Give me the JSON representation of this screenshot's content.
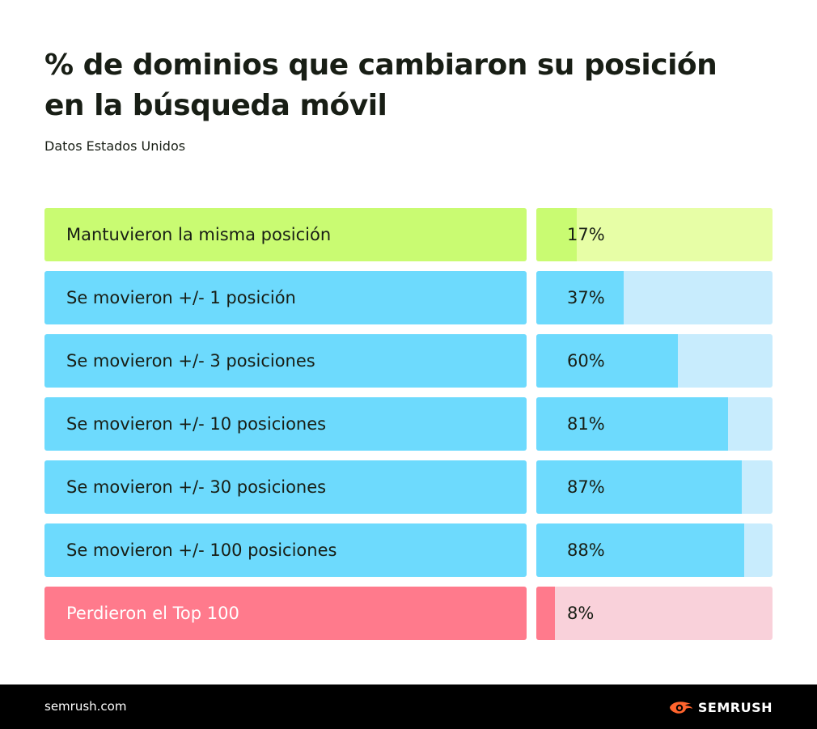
{
  "title": "% de dominios que cambiaron su posición en la búsqueda móvil",
  "subtitle": "Datos Estados Unidos",
  "chart_data": {
    "type": "bar",
    "orientation": "horizontal",
    "title": "% de dominios que cambiaron su posición en la búsqueda móvil",
    "subtitle": "Datos Estados Unidos",
    "unit": "%",
    "xlim": [
      0,
      100
    ],
    "categories": [
      "Mantuvieron la misma posición",
      "Se movieron +/- 1 posición",
      "Se movieron +/- 3 posiciones",
      "Se movieron +/- 10 posiciones",
      "Se movieron +/- 30 posiciones",
      "Se movieron +/- 100 posiciones",
      "Perdieron el Top 100"
    ],
    "values": [
      17,
      37,
      60,
      81,
      87,
      88,
      8
    ],
    "value_labels": [
      "17%",
      "37%",
      "60%",
      "81%",
      "87%",
      "88%",
      "8%"
    ],
    "colors": {
      "green_label": "#c9fb72",
      "green_fill": "#c9fb72",
      "green_track": "#e7fea6",
      "blue_label": "#6ddafd",
      "blue_fill": "#6ddafd",
      "blue_track": "#c8ecfd",
      "red_label": "#ff7a8c",
      "red_fill": "#ff7a8c",
      "red_track": "#f9d1da"
    },
    "row_colors": [
      "green",
      "blue",
      "blue",
      "blue",
      "blue",
      "blue",
      "red"
    ]
  },
  "footer": {
    "site": "semrush.com",
    "brand": "SEMRUSH",
    "brand_icon": "semrush-fire-icon",
    "brand_color": "#ff642d"
  }
}
